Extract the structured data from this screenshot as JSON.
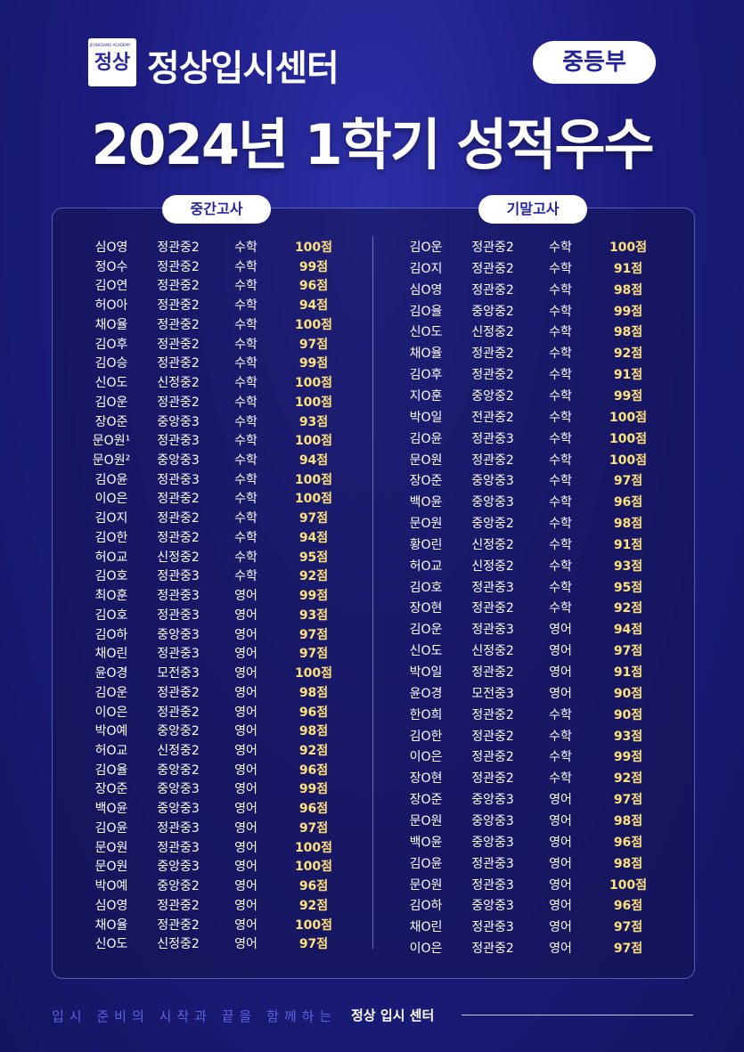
{
  "logo": {
    "mark": "정상",
    "sub": "JEONGSANG ACADEMY",
    "name": "정상입시센터"
  },
  "badge": "중등부",
  "title": "2024년 1학기 성적우수",
  "midterm": {
    "label": "중간고사",
    "rows": [
      [
        "심O영",
        "정관중2",
        "수학",
        "100점"
      ],
      [
        "정O수",
        "정관중2",
        "수학",
        "99점"
      ],
      [
        "김O연",
        "정관중2",
        "수학",
        "96점"
      ],
      [
        "허O아",
        "정관중2",
        "수학",
        "94점"
      ],
      [
        "채O율",
        "정관중2",
        "수학",
        "100점"
      ],
      [
        "김O후",
        "정관중2",
        "수학",
        "97점"
      ],
      [
        "김O승",
        "정관중2",
        "수학",
        "99점"
      ],
      [
        "신O도",
        "신정중2",
        "수학",
        "100점"
      ],
      [
        "김O운",
        "정관중2",
        "수학",
        "100점"
      ],
      [
        "장O준",
        "중앙중3",
        "수학",
        "93점"
      ],
      [
        "문O원¹",
        "정관중3",
        "수학",
        "100점"
      ],
      [
        "문O원²",
        "중앙중3",
        "수학",
        "94점"
      ],
      [
        "김O윤",
        "정관중3",
        "수학",
        "100점"
      ],
      [
        "이O은",
        "정관중2",
        "수학",
        "100점"
      ],
      [
        "김O지",
        "정관중2",
        "수학",
        "97점"
      ],
      [
        "김O한",
        "정관중2",
        "수학",
        "94점"
      ],
      [
        "허O교",
        "신정중2",
        "수학",
        "95점"
      ],
      [
        "김O호",
        "정관중3",
        "수학",
        "92점"
      ],
      [
        "최O훈",
        "정관중3",
        "영어",
        "99점"
      ],
      [
        "김O호",
        "정관중3",
        "영어",
        "93점"
      ],
      [
        "김O하",
        "중앙중3",
        "영어",
        "97점"
      ],
      [
        "채O린",
        "정관중3",
        "영어",
        "97점"
      ],
      [
        "윤O경",
        "모전중3",
        "영어",
        "100점"
      ],
      [
        "김O운",
        "정관중2",
        "영어",
        "98점"
      ],
      [
        "이O은",
        "정관중2",
        "영어",
        "96점"
      ],
      [
        "박O예",
        "중앙중2",
        "영어",
        "98점"
      ],
      [
        "허O교",
        "신정중2",
        "영어",
        "92점"
      ],
      [
        "김O율",
        "중앙중2",
        "영어",
        "96점"
      ],
      [
        "장O준",
        "중앙중3",
        "영어",
        "99점"
      ],
      [
        "백O윤",
        "중앙중3",
        "영어",
        "96점"
      ],
      [
        "김O윤",
        "정관중3",
        "영어",
        "97점"
      ],
      [
        "문O원",
        "정관중3",
        "영어",
        "100점"
      ],
      [
        "문O원",
        "중앙중3",
        "영어",
        "100점"
      ],
      [
        "박O예",
        "중앙중2",
        "영어",
        "96점"
      ],
      [
        "심O영",
        "정관중2",
        "영어",
        "92점"
      ],
      [
        "채O율",
        "정관중2",
        "영어",
        "100점"
      ],
      [
        "신O도",
        "신정중2",
        "영어",
        "97점"
      ]
    ]
  },
  "final": {
    "label": "기말고사",
    "rows": [
      [
        "김O운",
        "정관중2",
        "수학",
        "100점"
      ],
      [
        "김O지",
        "정관중2",
        "수학",
        "91점"
      ],
      [
        "심O영",
        "정관중2",
        "수학",
        "98점"
      ],
      [
        "김O율",
        "중앙중2",
        "수학",
        "99점"
      ],
      [
        "신O도",
        "신정중2",
        "수학",
        "98점"
      ],
      [
        "채O율",
        "정관중2",
        "수학",
        "92점"
      ],
      [
        "김O후",
        "정관중2",
        "수학",
        "91점"
      ],
      [
        "지O훈",
        "중앙중2",
        "수학",
        "99점"
      ],
      [
        "박O일",
        "전관중2",
        "수학",
        "100점"
      ],
      [
        "김O윤",
        "정관중3",
        "수학",
        "100점"
      ],
      [
        "문O원",
        "정관중2",
        "수학",
        "100점"
      ],
      [
        "장O준",
        "중앙중3",
        "수학",
        "97점"
      ],
      [
        "백O윤",
        "중앙중3",
        "수학",
        "96점"
      ],
      [
        "문O원",
        "중앙중2",
        "수학",
        "98점"
      ],
      [
        "황O린",
        "신정중2",
        "수학",
        "91점"
      ],
      [
        "허O교",
        "신정중2",
        "수학",
        "93점"
      ],
      [
        "김O호",
        "정관중3",
        "수학",
        "95점"
      ],
      [
        "장O현",
        "정관중2",
        "수학",
        "92점"
      ],
      [
        "김O운",
        "정관중3",
        "영어",
        "94점"
      ],
      [
        "신O도",
        "신정중2",
        "영어",
        "97점"
      ],
      [
        "박O일",
        "정관중2",
        "영어",
        "91점"
      ],
      [
        "윤O경",
        "모전중3",
        "영어",
        "90점"
      ],
      [
        "한O희",
        "정관중2",
        "수학",
        "90점"
      ],
      [
        "김O한",
        "정관중2",
        "수학",
        "93점"
      ],
      [
        "이O은",
        "정관중2",
        "수학",
        "99점"
      ],
      [
        "장O현",
        "정관중2",
        "수학",
        "92점"
      ],
      [
        "장O준",
        "중앙중3",
        "영어",
        "97점"
      ],
      [
        "문O원",
        "중앙중3",
        "영어",
        "98점"
      ],
      [
        "백O윤",
        "중앙중3",
        "영어",
        "96점"
      ],
      [
        "김O윤",
        "정관중3",
        "영어",
        "98점"
      ],
      [
        "문O원",
        "정관중3",
        "영어",
        "100점"
      ],
      [
        "김O하",
        "중앙중3",
        "영어",
        "96점"
      ],
      [
        "채O린",
        "정관중3",
        "영어",
        "97점"
      ],
      [
        "이O은",
        "정관중2",
        "영어",
        "97점"
      ]
    ]
  },
  "footer": {
    "slogan": "입시 준비의 시작과 끝을 함께하는",
    "brand": "정상 입시 센터"
  }
}
